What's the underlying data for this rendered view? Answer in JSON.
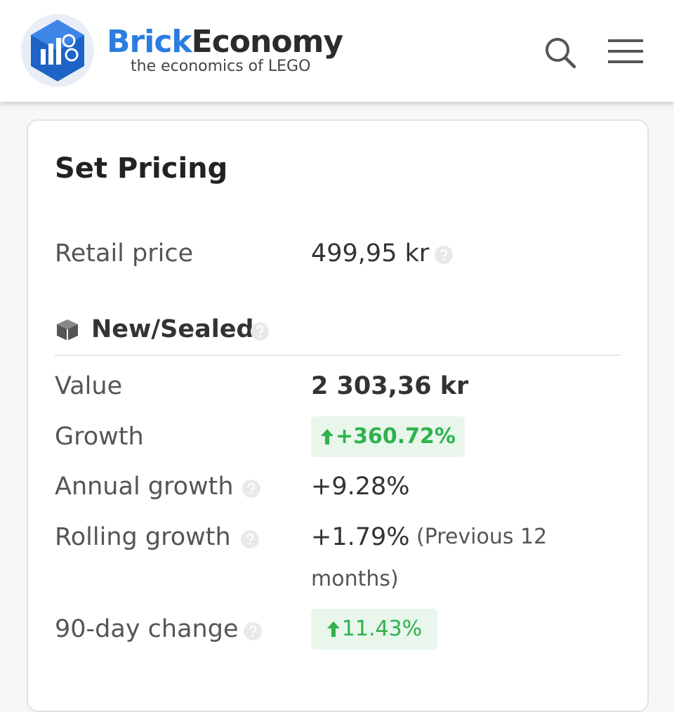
{
  "header": {
    "brand_first": "Brick",
    "brand_second": "Economy",
    "tagline": "the economics of LEGO"
  },
  "card": {
    "title": "Set Pricing",
    "retail": {
      "label": "Retail price",
      "value": "499,95 kr"
    },
    "section": "New/Sealed",
    "value": {
      "label": "Value",
      "value": "2 303,36 kr"
    },
    "growth": {
      "label": "Growth",
      "value": "+360.72%"
    },
    "annual": {
      "label": "Annual growth",
      "value": "+9.28%"
    },
    "rolling": {
      "label": "Rolling growth",
      "value": "+1.79%",
      "note": "(Previous 12 months)"
    },
    "change90": {
      "label": "90-day change",
      "value": "11.43%"
    }
  }
}
